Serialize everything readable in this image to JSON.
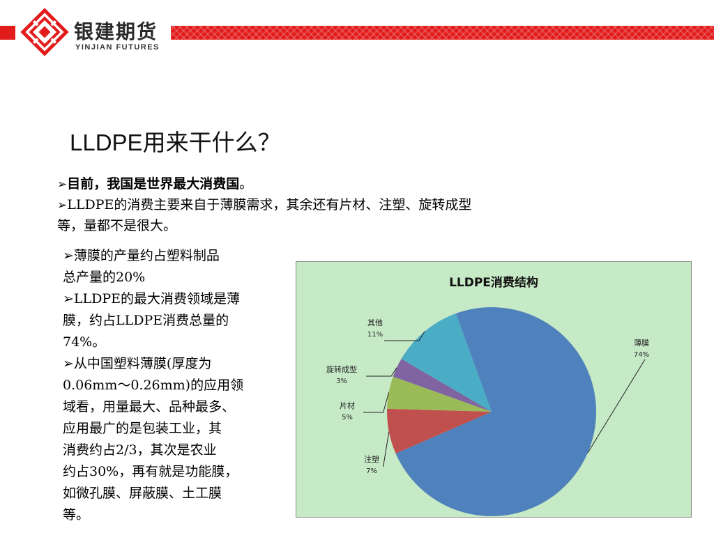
{
  "header": {
    "logo_cn": "银建期货",
    "logo_en": "YINJIAN FUTURES",
    "colors": {
      "brand_red": "#e21b1b"
    }
  },
  "title": {
    "latin": "LLDPE",
    "cn": "用来干什么？"
  },
  "bullets": [
    {
      "marker": "➢",
      "text": "目前，我国是世界最大消费国",
      "suffix": "。"
    },
    {
      "marker": "➢",
      "line1": "LLDPE的消费主要来自于薄膜需求，其余还有片材、注塑、旋转成型",
      "line2": "等，量都不是很大。"
    }
  ],
  "left_text": {
    "lines": [
      "➢薄膜的产量约占塑料制品",
      "总产量的20%",
      "➢LLDPE的最大消费领域是薄",
      "膜，约占LLDPE消费总量的",
      "74%。",
      "➢从中国塑料薄膜(厚度为",
      "0.06mm～0.26mm)的应用领",
      "域看，用量最大、品种最多、",
      "应用最广的是包装工业，其",
      "消费约占2/3，其次是农业",
      "约占30%，再有就是功能膜，",
      "如微孔膜、屏蔽膜、土工膜",
      "等。"
    ]
  },
  "chart_data": {
    "type": "pie",
    "title": "LLDPE消费结构",
    "categories": [
      "薄膜",
      "注塑",
      "片材",
      "旋转成型",
      "其他"
    ],
    "values": [
      74,
      7,
      5,
      3,
      11
    ],
    "labels": [
      "74%",
      "7%",
      "5%",
      "3%",
      "11%"
    ],
    "colors": [
      "#4f81bd",
      "#c0504d",
      "#9bbb59",
      "#8064a2",
      "#4bacc6"
    ],
    "background": "#c6e9c6"
  }
}
